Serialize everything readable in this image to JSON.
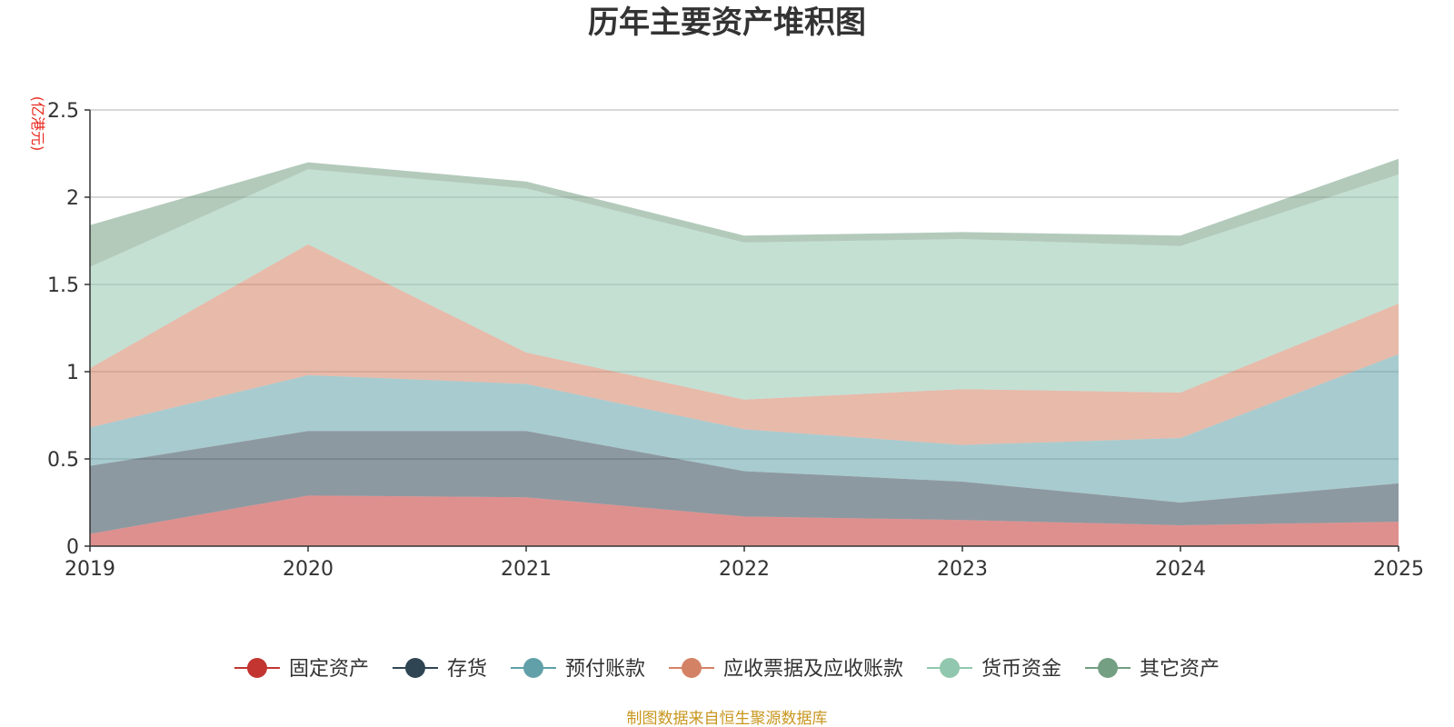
{
  "chart_data": {
    "type": "area",
    "stacked": true,
    "title": "历年主要资产堆积图",
    "ylabel": "(亿港元)",
    "xlabel": "",
    "ylim": [
      0,
      2.5
    ],
    "yticks": [
      "0",
      "0.5",
      "1",
      "1.5",
      "2",
      "2.5"
    ],
    "ytick_values": [
      0,
      0.5,
      1,
      1.5,
      2,
      2.5
    ],
    "grid": true,
    "legend_position": "bottom",
    "categories": [
      "2019",
      "2020",
      "2021",
      "2022",
      "2023",
      "2024",
      "2025"
    ],
    "series": [
      {
        "name": "固定资产",
        "color": "#c23531",
        "values": [
          0.07,
          0.29,
          0.28,
          0.17,
          0.15,
          0.12,
          0.14
        ]
      },
      {
        "name": "存货",
        "color": "#2f4554",
        "values": [
          0.39,
          0.37,
          0.38,
          0.26,
          0.22,
          0.13,
          0.22
        ]
      },
      {
        "name": "预付账款",
        "color": "#61a0a8",
        "values": [
          0.22,
          0.32,
          0.27,
          0.24,
          0.21,
          0.37,
          0.74
        ]
      },
      {
        "name": "应收票据及应收账款",
        "color": "#d48265",
        "values": [
          0.34,
          0.75,
          0.18,
          0.17,
          0.32,
          0.26,
          0.29
        ]
      },
      {
        "name": "货币资金",
        "color": "#91c7ae",
        "values": [
          0.58,
          0.43,
          0.94,
          0.9,
          0.86,
          0.84,
          0.74
        ]
      },
      {
        "name": "其它资产",
        "color": "#749f83",
        "values": [
          0.24,
          0.04,
          0.04,
          0.04,
          0.04,
          0.06,
          0.09
        ]
      }
    ],
    "source": "制图数据来自恒生聚源数据库",
    "unit_color": "#e8281e",
    "source_color": "#c8961e"
  }
}
